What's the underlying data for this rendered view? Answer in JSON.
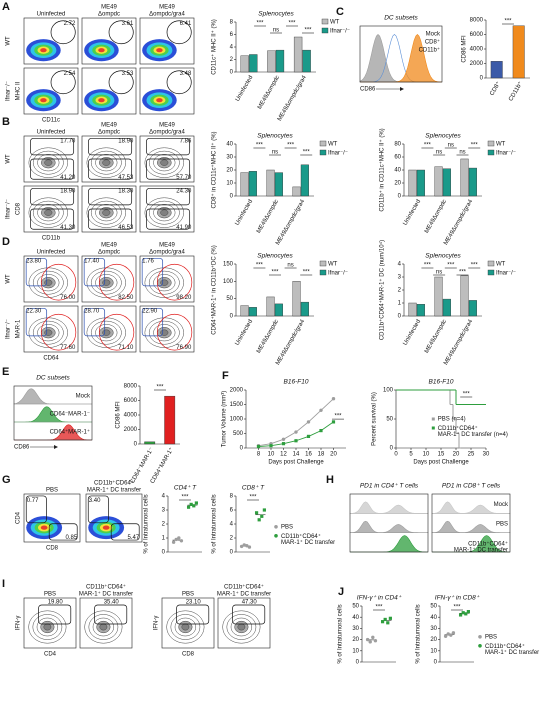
{
  "chart_data": [
    {
      "type": "flow",
      "panel": "A",
      "columns": [
        [
          "Uninfected"
        ],
        [
          "ME49",
          "Δompdc"
        ],
        [
          "ME49",
          "Δompdc/gra4"
        ]
      ],
      "rows": [
        "WT",
        "Ifnar⁻/⁻"
      ],
      "x_label": "CD11c",
      "y_label": "MHC II",
      "gates": [
        [
          [
            "2.72"
          ],
          [
            "3.61"
          ],
          [
            "6.41"
          ]
        ],
        [
          [
            "2.54"
          ],
          [
            "3.53"
          ],
          [
            "3.48"
          ]
        ]
      ],
      "gate_colors": [
        "#111111"
      ]
    },
    {
      "type": "bar",
      "title": "Splenocytes",
      "y_label": "CD11c⁺ MHC II⁺ (%)",
      "categories": [
        "Uninfected",
        "ME49Δompdc",
        "ME49Δompdc/gra4"
      ],
      "series": [
        {
          "name": "WT",
          "color": "#bdbdbd",
          "values": [
            2.6,
            3.4,
            5.6
          ]
        },
        {
          "name": "Ifnar⁻/⁻",
          "color": "#1a9a8a",
          "values": [
            2.8,
            3.5,
            3.5
          ]
        }
      ],
      "ylim": [
        0,
        8
      ],
      "yticks": [
        0,
        2,
        4,
        6,
        8
      ],
      "annotations": [
        "***",
        "ns",
        "***",
        "***"
      ]
    },
    {
      "type": "density",
      "panel": "C",
      "title": "DC subsets",
      "x_label": "CD86",
      "series": [
        {
          "name": "Mock",
          "color": "#9e9e9e"
        },
        {
          "name": "CD8⁺",
          "color": "#5b8fd6"
        },
        {
          "name": "CD11b⁺",
          "color": "#f08a1c"
        }
      ]
    },
    {
      "type": "bar",
      "y_label": "CD86 MFI",
      "categories": [
        "CD8⁺",
        "CD11b⁺"
      ],
      "values": [
        2300,
        7200
      ],
      "colors": [
        "#3b5aa8",
        "#f08a1c"
      ],
      "ylim": [
        0,
        8000
      ],
      "yticks": [
        0,
        2000,
        4000,
        6000,
        8000
      ],
      "annotations": [
        "***"
      ]
    },
    {
      "type": "flow",
      "panel": "B",
      "columns": [
        [
          "Uninfected"
        ],
        [
          "ME49",
          "Δompdc"
        ],
        [
          "ME49",
          "Δompdc/gra4"
        ]
      ],
      "rows": [
        "WT",
        "Ifnar⁻/⁻"
      ],
      "x_label": "CD11b",
      "y_label": "CD8",
      "gates": [
        [
          [
            "17.70",
            "41.20"
          ],
          [
            "18.90",
            "47.53"
          ],
          [
            "7.86",
            "57.70"
          ]
        ],
        [
          [
            "18.90",
            "41.30"
          ],
          [
            "18.30",
            "46.53"
          ],
          [
            "24.30",
            "41.90"
          ]
        ]
      ],
      "gate_colors": [
        "#111111",
        "#111111"
      ]
    },
    {
      "type": "bar",
      "title": "Splenocytes",
      "y_label": "CD8⁺ in CD11c⁺MHC II⁺ (%)",
      "categories": [
        "Uninfected",
        "ME49Δompdc",
        "ME49Δompdc/gra4"
      ],
      "series": [
        {
          "name": "WT",
          "color": "#bdbdbd",
          "values": [
            18,
            20,
            7
          ]
        },
        {
          "name": "Ifnar⁻/⁻",
          "color": "#1a9a8a",
          "values": [
            19,
            18,
            24
          ]
        }
      ],
      "ylim": [
        0,
        40
      ],
      "yticks": [
        0,
        10,
        20,
        30,
        40
      ],
      "annotations": [
        "***",
        "ns",
        "***",
        "***"
      ]
    },
    {
      "type": "bar",
      "title": "Splenocytes",
      "y_label": "CD11b⁺ in CD11c⁺MHC II⁺ (%)",
      "categories": [
        "Uninfected",
        "ME49Δompdc",
        "ME49Δompdc/gra4"
      ],
      "series": [
        {
          "name": "WT",
          "color": "#bdbdbd",
          "values": [
            40,
            45,
            57
          ]
        },
        {
          "name": "Ifnar⁻/⁻",
          "color": "#1a9a8a",
          "values": [
            40,
            42,
            43
          ]
        }
      ],
      "ylim": [
        0,
        80
      ],
      "yticks": [
        0,
        20,
        40,
        60,
        80
      ],
      "annotations": [
        "***",
        "ns",
        "ns",
        "ns",
        "***"
      ]
    },
    {
      "type": "flow",
      "panel": "D",
      "columns": [
        [
          "Uninfected"
        ],
        [
          "ME49",
          "Δompdc"
        ],
        [
          "ME49",
          "Δompdc/gra4"
        ]
      ],
      "rows": [
        "WT",
        "Ifnar⁻/⁻"
      ],
      "x_label": "CD64",
      "y_label": "MAR-1",
      "gates": [
        [
          [
            "23.80",
            "76.00"
          ],
          [
            "17.40",
            "82.50"
          ],
          [
            "1.76",
            "98.20"
          ]
        ],
        [
          [
            "22.30",
            "77.60"
          ],
          [
            "28.70",
            "71.10"
          ],
          [
            "22.90",
            "76.90"
          ]
        ]
      ],
      "gate_colors": [
        "#2a4fb0",
        "#e02020"
      ]
    },
    {
      "type": "bar",
      "title": "Splenocytes",
      "y_label": "CD64⁺MAR-1⁺ in CD11b⁺DC (%)",
      "categories": [
        "Uninfected",
        "ME49Δompdc",
        "ME49Δompdc/gra4"
      ],
      "series": [
        {
          "name": "WT",
          "color": "#bdbdbd",
          "values": [
            30,
            55,
            100
          ]
        },
        {
          "name": "Ifnar⁻/⁻",
          "color": "#1a9a8a",
          "values": [
            25,
            35,
            40
          ]
        }
      ],
      "ylim": [
        0,
        150
      ],
      "yticks": [
        0,
        50,
        100,
        150
      ],
      "annotations": [
        "***",
        "***",
        "ns",
        "***"
      ]
    },
    {
      "type": "bar",
      "title": "Splenocytes",
      "y_label": "CD11b⁺CD64⁺MAR-1⁺ DC (num/10⁴)",
      "categories": [
        "Uninfected",
        "ME49Δompdc",
        "ME49Δompdc/gra4"
      ],
      "series": [
        {
          "name": "WT",
          "color": "#bdbdbd",
          "values": [
            1.0,
            3.0,
            3.1
          ]
        },
        {
          "name": "Ifnar⁻/⁻",
          "color": "#1a9a8a",
          "values": [
            0.9,
            1.3,
            1.2
          ]
        }
      ],
      "ylim": [
        0,
        4
      ],
      "yticks": [
        0,
        1,
        2,
        3,
        4
      ],
      "annotations": [
        "***",
        "ns",
        "***",
        "***",
        "***"
      ]
    },
    {
      "type": "density",
      "panel": "E",
      "title": "DC subsets",
      "x_label": "CD86",
      "series": [
        {
          "name": "Mock",
          "color": "#9e9e9e"
        },
        {
          "name": "CD64⁻MAR-1⁻",
          "color": "#2e9e3e"
        },
        {
          "name": "CD64⁺MAR-1⁺",
          "color": "#e02020"
        }
      ]
    },
    {
      "type": "bar",
      "y_label": "CD86 MFI",
      "categories": [
        "CD64⁻MAR-1⁻",
        "CD64⁺MAR-1⁺"
      ],
      "values": [
        300,
        6600
      ],
      "colors": [
        "#2e9e3e",
        "#e02020"
      ],
      "ylim": [
        0,
        8000
      ],
      "yticks": [
        0,
        2000,
        4000,
        6000,
        8000
      ],
      "annotations": [
        "***"
      ]
    },
    {
      "type": "line",
      "panel": "F",
      "title": "B16-F10",
      "x_label": "Days post Challenge",
      "y_label": "Tumor Volume (mm³)",
      "x": [
        8,
        10,
        12,
        14,
        16,
        18,
        20
      ],
      "series": [
        {
          "color": "#9e9e9e",
          "values": [
            80,
            150,
            300,
            550,
            900,
            1300,
            1700
          ]
        },
        {
          "color": "#2e9e3e",
          "values": [
            50,
            80,
            150,
            250,
            400,
            600,
            900
          ]
        }
      ],
      "xlim": [
        6,
        22
      ],
      "xticks": [
        8,
        10,
        12,
        14,
        16,
        18,
        20
      ],
      "ylim": [
        0,
        2000
      ],
      "yticks": [
        0,
        500,
        1000,
        1500,
        2000
      ],
      "annotations": [
        "***"
      ]
    },
    {
      "type": "step",
      "title": "B16-F10",
      "x_label": "Days post Challenge",
      "y_label": "Percent survival (%)",
      "series": [
        {
          "name": "PBS (n=4)",
          "color": "#9e9e9e",
          "x": [
            0,
            18,
            19,
            20,
            21
          ],
          "values": [
            100,
            75,
            50,
            25,
            0
          ]
        },
        {
          "name": "CD11b⁺CD64⁺ MAR-1⁺ DC transfer (n=4)",
          "color": "#2e9e3e",
          "x": [
            0,
            20
          ],
          "values": [
            100,
            75
          ]
        }
      ],
      "xlim": [
        0,
        30
      ],
      "xticks": [
        0,
        5,
        10,
        15,
        20,
        25,
        30
      ],
      "ylim": [
        0,
        100
      ],
      "yticks": [
        0,
        50,
        100
      ],
      "annotations": [
        "***"
      ]
    },
    {
      "type": "flow",
      "panel": "G",
      "columns": [
        [
          "PBS"
        ],
        [
          "CD11b⁺CD64⁺",
          "MAR-1⁺ DC transfer"
        ]
      ],
      "x_label": "CD8",
      "y_label": "CD4",
      "gates": [
        [
          [
            "0.77",
            "0.85"
          ],
          [
            "3.40",
            "5.47"
          ]
        ]
      ],
      "gate_colors": [
        "#111111",
        "#111111"
      ]
    },
    {
      "type": "dot",
      "title": "CD4⁺ T",
      "y_label": "% of Intratumoral cells",
      "series": [
        {
          "color": "#9e9e9e",
          "values": [
            0.7,
            0.9,
            1.0,
            0.8
          ]
        },
        {
          "color": "#2e9e3e",
          "values": [
            3.2,
            3.4,
            3.3,
            3.5
          ]
        }
      ],
      "ylim": [
        0,
        4
      ],
      "yticks": [
        0,
        1,
        2,
        3,
        4
      ],
      "annotations": [
        "***"
      ]
    },
    {
      "type": "dot",
      "title": "CD8⁺ T",
      "y_label": "% of Intratumoral cells",
      "series": [
        {
          "name": "PBS",
          "color": "#9e9e9e",
          "values": [
            0.8,
            1.0,
            0.9,
            0.7
          ]
        },
        {
          "name": "CD11b⁺CD64⁺ MAR-1⁺ DC transfer",
          "color": "#2e9e3e",
          "values": [
            5.6,
            4.6,
            5.1,
            6.0
          ]
        }
      ],
      "ylim": [
        0,
        8
      ],
      "yticks": [
        0,
        2,
        4,
        6,
        8
      ],
      "annotations": [
        "***"
      ]
    },
    {
      "type": "density",
      "panel": "H",
      "title": "PD1 in CD4⁺ T cells",
      "series": [
        {
          "color": "#c8c8c8"
        },
        {
          "color": "#9e9e9e"
        },
        {
          "color": "#2e9e3e"
        }
      ]
    },
    {
      "type": "density",
      "title": "PD1 in CD8⁺ T cells",
      "series": [
        {
          "name": "Mock",
          "color": "#c8c8c8"
        },
        {
          "name": "PBS",
          "color": "#9e9e9e"
        },
        {
          "name": "CD11b⁺CD64⁺ MAR-1⁺ DC transfer",
          "color": "#2e9e3e"
        }
      ]
    },
    {
      "type": "flow",
      "panel": "I",
      "columns": [
        [
          "PBS"
        ],
        [
          "CD11b⁺CD64⁺",
          "MAR-1⁺ DC transfer"
        ]
      ],
      "x_label": "CD4",
      "y_label": "IFN-γ",
      "gates": [
        [
          [
            "19.80"
          ],
          [
            "35.40"
          ]
        ]
      ],
      "gate_colors": [
        "#111111"
      ]
    },
    {
      "type": "flow",
      "columns": [
        [
          "PBS"
        ],
        [
          "CD11b⁺CD64⁺",
          "MAR-1⁺ DC transfer"
        ]
      ],
      "x_label": "CD8",
      "y_label": "IFN-γ",
      "gates": [
        [
          [
            "23.10"
          ],
          [
            "47.30"
          ]
        ]
      ],
      "gate_colors": [
        "#111111"
      ]
    },
    {
      "type": "dot",
      "panel": "J",
      "title": "IFN-γ⁺ in CD4⁺",
      "y_label": "% of Intratumoral cells",
      "series": [
        {
          "color": "#9e9e9e",
          "values": [
            20,
            18,
            22,
            19
          ]
        },
        {
          "color": "#2e9e3e",
          "values": [
            36,
            38,
            35,
            39
          ]
        }
      ],
      "ylim": [
        0,
        50
      ],
      "yticks": [
        0,
        10,
        20,
        30,
        40,
        50
      ],
      "annotations": [
        "***"
      ]
    },
    {
      "type": "dot",
      "title": "IFN-γ⁺ in CD8⁺",
      "y_label": "% of Intratumoral cells",
      "series": [
        {
          "name": "PBS",
          "color": "#9e9e9e",
          "values": [
            23,
            25,
            24,
            26
          ]
        },
        {
          "name": "CD11b⁺CD64⁺ MAR-1⁺ DC transfer",
          "color": "#2e9e3e",
          "values": [
            42,
            44,
            43,
            45
          ]
        }
      ],
      "ylim": [
        0,
        50
      ],
      "yticks": [
        0,
        10,
        20,
        30,
        40,
        50
      ],
      "annotations": [
        "***"
      ]
    }
  ]
}
